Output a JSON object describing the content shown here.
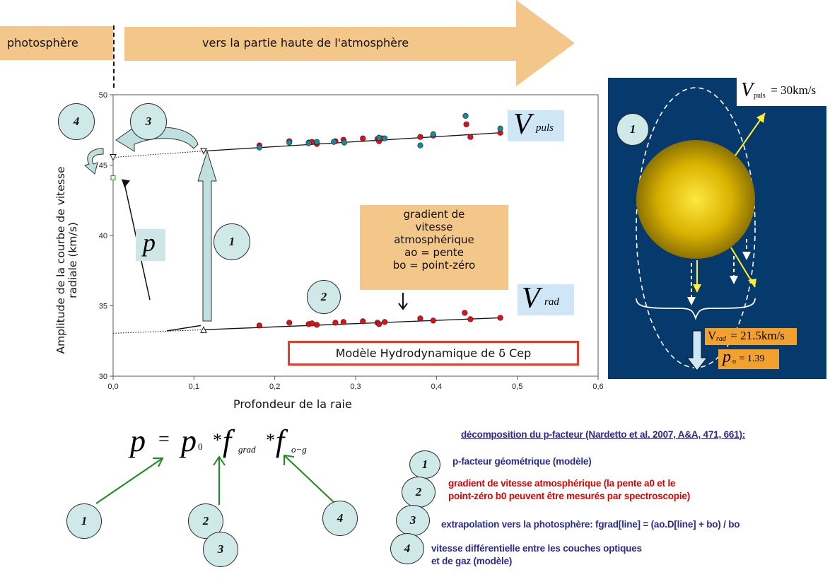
{
  "header": {
    "photosphere_label": "photosphère",
    "arrow_label": "vers la partie haute de l'atmosphère"
  },
  "chart_data": {
    "type": "scatter",
    "title": "Modèle Hydrodynamique de δ Cep",
    "xlabel": "Profondeur de la raie",
    "ylabel": "Amplitude de la courbe de vitesse radiale (km/s)",
    "xlim": [
      0,
      0.6
    ],
    "ylim": [
      30,
      50
    ],
    "x_ticks": [
      "0,0",
      "0,1",
      "0,2",
      "0,3",
      "0,4",
      "0,5",
      "0,6"
    ],
    "y_ticks": [
      "30",
      "35",
      "40",
      "45",
      "50"
    ],
    "y_ticks_visible": [
      " 30",
      "35",
      "40",
      "45",
      "50"
    ],
    "series": [
      {
        "name": "puls-red",
        "color": "#e0101a",
        "points": [
          [
            0.181,
            46.4
          ],
          [
            0.218,
            46.7
          ],
          [
            0.242,
            46.6
          ],
          [
            0.246,
            46.65
          ],
          [
            0.252,
            46.5
          ],
          [
            0.275,
            46.7
          ],
          [
            0.285,
            46.8
          ],
          [
            0.309,
            46.9
          ],
          [
            0.327,
            46.85
          ],
          [
            0.329,
            46.7
          ],
          [
            0.333,
            46.9
          ],
          [
            0.38,
            47.0
          ],
          [
            0.396,
            47.1
          ],
          [
            0.437,
            47.9
          ],
          [
            0.442,
            47.0
          ],
          [
            0.479,
            47.3
          ]
        ]
      },
      {
        "name": "puls-teal",
        "color": "#1a8a9a",
        "points": [
          [
            0.181,
            46.25
          ],
          [
            0.218,
            46.6
          ],
          [
            0.242,
            46.55
          ],
          [
            0.252,
            46.65
          ],
          [
            0.273,
            46.65
          ],
          [
            0.286,
            46.6
          ],
          [
            0.329,
            46.95
          ],
          [
            0.336,
            46.9
          ],
          [
            0.38,
            46.4
          ],
          [
            0.396,
            47.2
          ],
          [
            0.436,
            48.5
          ],
          [
            0.479,
            47.6
          ]
        ]
      },
      {
        "name": "rad-red",
        "color": "#e0101a",
        "points": [
          [
            0.181,
            33.6
          ],
          [
            0.218,
            33.8
          ],
          [
            0.242,
            33.7
          ],
          [
            0.246,
            33.75
          ],
          [
            0.252,
            33.65
          ],
          [
            0.275,
            33.8
          ],
          [
            0.285,
            33.85
          ],
          [
            0.309,
            33.9
          ],
          [
            0.327,
            33.8
          ],
          [
            0.329,
            33.7
          ],
          [
            0.336,
            33.85
          ],
          [
            0.38,
            34.1
          ],
          [
            0.396,
            33.95
          ],
          [
            0.435,
            34.5
          ],
          [
            0.442,
            34.05
          ],
          [
            0.479,
            34.15
          ]
        ]
      }
    ],
    "fit_lines": [
      {
        "name": "vpuls-fit",
        "x": [
          0.112,
          0.479
        ],
        "y": [
          46.0,
          47.3
        ],
        "style": "solid"
      },
      {
        "name": "vpuls-extrap",
        "x": [
          0.0,
          0.112
        ],
        "y": [
          45.55,
          46.0
        ],
        "style": "dotted"
      },
      {
        "name": "vrad-fit",
        "x": [
          0.112,
          0.479
        ],
        "y": [
          33.3,
          34.15
        ],
        "style": "solid"
      },
      {
        "name": "vrad-extrap",
        "x": [
          0.0,
          0.112
        ],
        "y": [
          33.05,
          33.3
        ],
        "style": "dotted"
      }
    ],
    "special_points": [
      {
        "name": "triangle-puls-left",
        "x": 0.0,
        "y": 45.55,
        "shape": "triangle-down"
      },
      {
        "name": "triangle-puls-mid",
        "x": 0.112,
        "y": 46.0,
        "shape": "triangle-down"
      },
      {
        "name": "triangle-rad-mid",
        "x": 0.112,
        "y": 33.3,
        "shape": "triangle-up"
      },
      {
        "name": "square-p",
        "x": 0.0,
        "y": 44.1,
        "shape": "square"
      }
    ]
  },
  "chart_labels": {
    "vpuls_main": "V",
    "vpuls_sub": "puls",
    "vrad_main": "V",
    "vrad_sub": "rad",
    "p_label": "p",
    "gradient_box": [
      "gradient de",
      "vitesse",
      "atmosphérique",
      "ao = pente",
      "bo = point-zéro"
    ],
    "num1": "1",
    "num2": "2",
    "num3": "3",
    "num4": "4"
  },
  "star_panel": {
    "num": "1",
    "vpuls_V": "V",
    "vpuls_sub": "puls",
    "vpuls_value": " = 30km/s",
    "vrad_V": "V",
    "vrad_sub": "rad",
    "vrad_value": " = 21.5km/s",
    "p0_p": "p",
    "p0_sub": "o",
    "p0_value": " = 1.39",
    "background": "#063a6c",
    "star_color": "#d8b200"
  },
  "formula": {
    "p": "p",
    "eq": "=",
    "p0": "p",
    "p0_sub": "0",
    "star1": "*",
    "f1": "f",
    "f1_sub": "grad",
    "star2": "*",
    "f2": "f",
    "f2_sub": "o−g",
    "n1": "1",
    "n2": "2",
    "n3": "3",
    "n4": "4"
  },
  "legend": {
    "title": "décomposition du p-facteur (Nardetto et al. 2007, A&A, 471, 661):",
    "item1": "p-facteur géométrique (modèle)",
    "item2_line1": "gradient de vitesse atmosphérique (la pente a0 et le",
    "item2_line2": "point-zéro b0 peuvent être mesurés par spectroscopie)",
    "item3": "extrapolation vers la photosphère: fgrad[line] = (ao.D[line] + bo) / bo",
    "item4_line1": "vitesse différentielle entre les couches optiques",
    "item4_line2": "et de gaz (modèle)",
    "n1": "1",
    "n2": "2",
    "n3": "3",
    "n4": "4",
    "color_blue": "#2a2a8f",
    "color_red": "#e00000"
  }
}
